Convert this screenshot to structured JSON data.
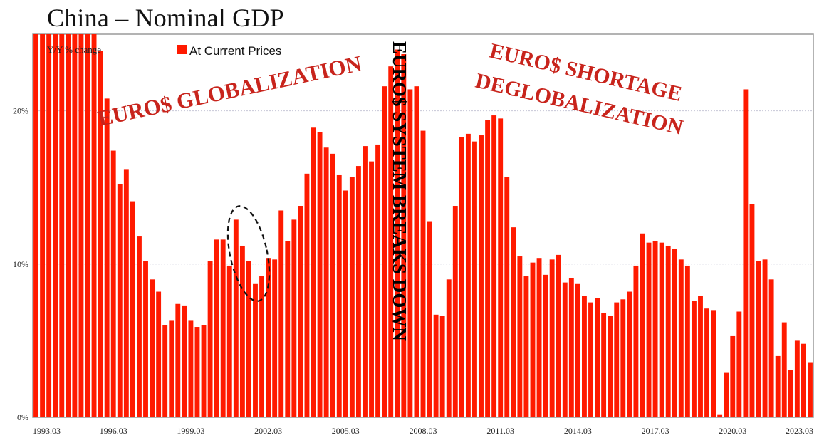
{
  "chart_data": {
    "type": "bar",
    "title": "China – Nominal GDP",
    "ylabel": "Y/Y % change",
    "legend": [
      "At Current Prices"
    ],
    "legend_position": "top-left",
    "ylim": [
      0,
      25
    ],
    "yticks": [
      0,
      10,
      20
    ],
    "ytick_labels": [
      "0%",
      "10%",
      "20%"
    ],
    "xtick_labels": [
      "1993.03",
      "1996.03",
      "1999.03",
      "2002.03",
      "2005.03",
      "2008.03",
      "2011.03",
      "2014.03",
      "2017.03",
      "2020.03",
      "2023.03"
    ],
    "grid": true,
    "bar_color": "#ff1a00",
    "start_label": "1993.03",
    "frequency": "quarterly",
    "values": [
      25,
      25,
      25,
      25,
      25,
      25,
      25,
      25,
      25,
      25,
      23.9,
      20.8,
      17.4,
      15.2,
      16.2,
      14.1,
      11.8,
      10.2,
      9.0,
      8.2,
      6.0,
      6.3,
      7.4,
      7.3,
      6.3,
      5.9,
      6.0,
      10.2,
      11.6,
      11.6,
      9.9,
      12.9,
      11.2,
      10.2,
      8.7,
      9.2,
      10.4,
      10.3,
      13.5,
      11.5,
      12.9,
      13.8,
      15.9,
      18.9,
      18.6,
      17.6,
      17.2,
      15.8,
      14.8,
      15.7,
      16.4,
      17.7,
      16.7,
      17.8,
      21.6,
      22.9,
      24.0,
      23.7,
      21.4,
      21.6,
      18.7,
      12.8,
      6.7,
      6.6,
      9.0,
      13.8,
      18.3,
      18.5,
      18.0,
      18.4,
      19.4,
      19.7,
      19.5,
      15.7,
      12.4,
      10.5,
      9.2,
      10.1,
      10.4,
      9.3,
      10.3,
      10.6,
      8.8,
      9.1,
      8.7,
      7.9,
      7.5,
      7.8,
      6.8,
      6.6,
      7.5,
      7.7,
      8.2,
      9.9,
      12.0,
      11.4,
      11.5,
      11.4,
      11.2,
      11.0,
      10.3,
      9.9,
      7.6,
      7.9,
      7.1,
      7.0,
      0.2,
      2.9,
      5.3,
      6.9,
      21.4,
      13.9,
      10.2,
      10.3,
      9.0,
      4.0,
      6.2,
      3.1,
      5.0,
      4.8,
      3.6
    ],
    "annotations": [
      {
        "text": "EURO$ GLOBALIZATION",
        "style": "red-rotated"
      },
      {
        "text": "EURO$ SYSTEM BREAKS DOWN",
        "style": "black-vertical"
      },
      {
        "text": "EURO$ SHORTAGE",
        "style": "red-rotated"
      },
      {
        "text": "DEGLOBALIZATION",
        "style": "red-rotated"
      }
    ],
    "highlight": {
      "shape": "dashed-ellipse",
      "around": "2000.03–2001.06"
    }
  }
}
